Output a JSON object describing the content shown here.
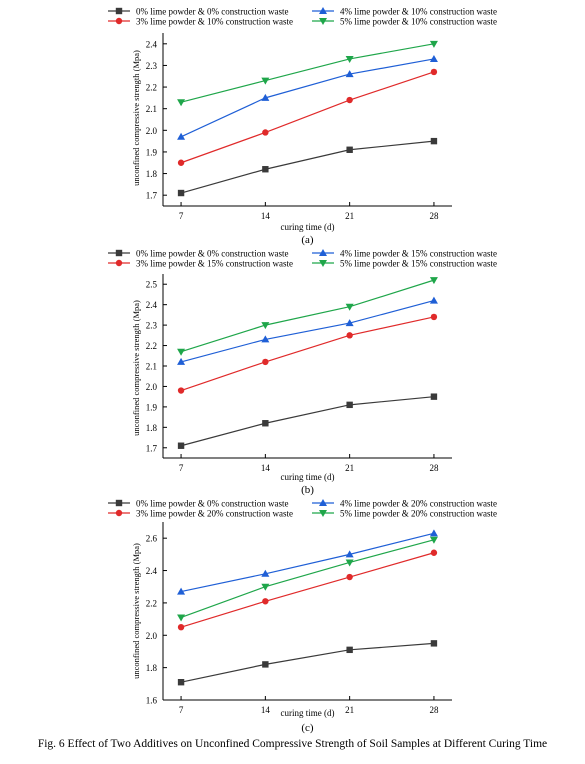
{
  "figure": {
    "caption": "Fig. 6 Effect of Two Additives on Unconfined Compressive Strength of Soil Samples at Different Curing Time"
  },
  "chart_data": [
    {
      "type": "line",
      "panel_label": "(a)",
      "xlabel": "curing time (d)",
      "ylabel": "unconfined compressive strength (Mpa)",
      "x": [
        7,
        14,
        21,
        28
      ],
      "xticks": [
        "7",
        "14",
        "21",
        "28"
      ],
      "yticks": [
        "1.7",
        "1.8",
        "1.9",
        "2.0",
        "2.1",
        "2.2",
        "2.3",
        "2.4"
      ],
      "ylim": [
        1.65,
        2.45
      ],
      "legend_position": "top",
      "series": [
        {
          "name": "0% lime powder & 0% construction waste",
          "color": "#3a3a3a",
          "marker": "square",
          "values": [
            1.71,
            1.82,
            1.91,
            1.95
          ]
        },
        {
          "name": "3% lime powder & 10% construction waste",
          "color": "#e02a2a",
          "marker": "circle",
          "values": [
            1.85,
            1.99,
            2.14,
            2.27
          ]
        },
        {
          "name": "4% lime powder & 10% construction waste",
          "color": "#1f5fd6",
          "marker": "triangle-up",
          "values": [
            1.97,
            2.15,
            2.26,
            2.33
          ]
        },
        {
          "name": "5% lime powder & 10% construction waste",
          "color": "#1fa64a",
          "marker": "triangle-down",
          "values": [
            2.13,
            2.23,
            2.33,
            2.4
          ]
        }
      ]
    },
    {
      "type": "line",
      "panel_label": "(b)",
      "xlabel": "curing time (d)",
      "ylabel": "unconfined compressive strength (Mpa)",
      "x": [
        7,
        14,
        21,
        28
      ],
      "xticks": [
        "7",
        "14",
        "21",
        "28"
      ],
      "yticks": [
        "1.7",
        "1.8",
        "1.9",
        "2.0",
        "2.1",
        "2.2",
        "2.3",
        "2.4",
        "2.5"
      ],
      "ylim": [
        1.65,
        2.55
      ],
      "legend_position": "top",
      "series": [
        {
          "name": "0% lime powder & 0% construction waste",
          "color": "#3a3a3a",
          "marker": "square",
          "values": [
            1.71,
            1.82,
            1.91,
            1.95
          ]
        },
        {
          "name": "3% lime powder & 15% construction waste",
          "color": "#e02a2a",
          "marker": "circle",
          "values": [
            1.98,
            2.12,
            2.25,
            2.34
          ]
        },
        {
          "name": "4% lime powder & 15% construction waste",
          "color": "#1f5fd6",
          "marker": "triangle-up",
          "values": [
            2.12,
            2.23,
            2.31,
            2.42
          ]
        },
        {
          "name": "5% lime powder & 15% construction waste",
          "color": "#1fa64a",
          "marker": "triangle-down",
          "values": [
            2.17,
            2.3,
            2.39,
            2.52
          ]
        }
      ]
    },
    {
      "type": "line",
      "panel_label": "(c)",
      "xlabel": "curing time (d)",
      "ylabel": "unconfined compressive strength (Mpa)",
      "x": [
        7,
        14,
        21,
        28
      ],
      "xticks": [
        "7",
        "14",
        "21",
        "28"
      ],
      "yticks": [
        "1.6",
        "1.8",
        "2.0",
        "2.2",
        "2.4",
        "2.6"
      ],
      "ylim": [
        1.6,
        2.7
      ],
      "legend_position": "top",
      "series": [
        {
          "name": "0% lime powder & 0% construction waste",
          "color": "#3a3a3a",
          "marker": "square",
          "values": [
            1.71,
            1.82,
            1.91,
            1.95
          ]
        },
        {
          "name": "3% lime powder & 20% construction waste",
          "color": "#e02a2a",
          "marker": "circle",
          "values": [
            2.05,
            2.21,
            2.36,
            2.51
          ]
        },
        {
          "name": "4% lime powder & 20% construction waste",
          "color": "#1f5fd6",
          "marker": "triangle-up",
          "values": [
            2.27,
            2.38,
            2.5,
            2.63
          ]
        },
        {
          "name": "5% lime powder & 20% construction waste",
          "color": "#1fa64a",
          "marker": "triangle-down",
          "values": [
            2.11,
            2.3,
            2.45,
            2.59
          ]
        }
      ]
    }
  ]
}
